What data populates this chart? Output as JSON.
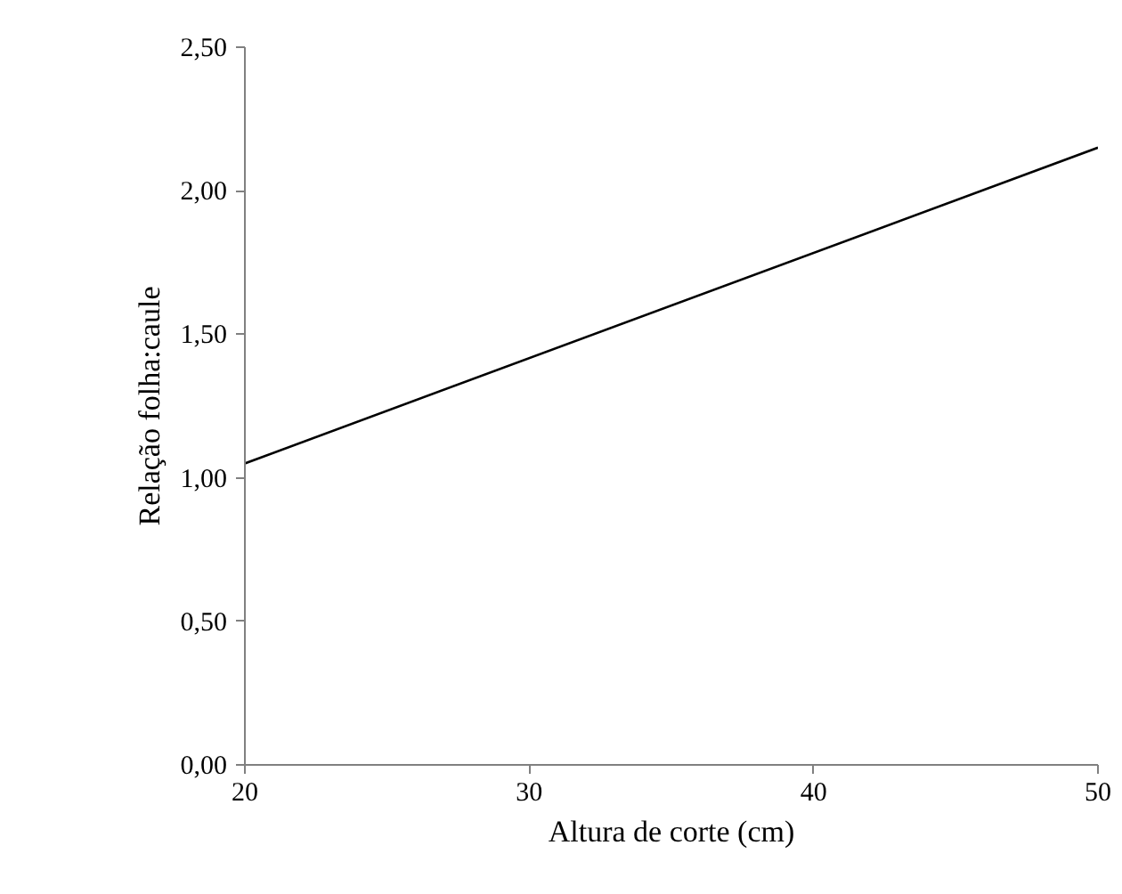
{
  "chart_data": {
    "type": "line",
    "xlabel": "Altura de corte (cm)",
    "ylabel": "Relação folha:caule",
    "x": [
      20,
      50
    ],
    "series": [
      {
        "color": "#000000",
        "values": [
          1.05,
          2.15
        ]
      }
    ],
    "xlim": [
      20,
      50
    ],
    "xticks": [
      20,
      30,
      40,
      50
    ],
    "ylim": [
      0,
      2.5
    ],
    "yticks": [
      {
        "value": 0,
        "label": "0,00"
      },
      {
        "value": 0.5,
        "label": "0,50"
      },
      {
        "value": 1.0,
        "label": "1,00"
      },
      {
        "value": 1.5,
        "label": "1,50"
      },
      {
        "value": 2.0,
        "label": "2,00"
      },
      {
        "value": 2.5,
        "label": "2,50"
      }
    ],
    "grid": false,
    "marker": "none",
    "line_style": "solid"
  }
}
